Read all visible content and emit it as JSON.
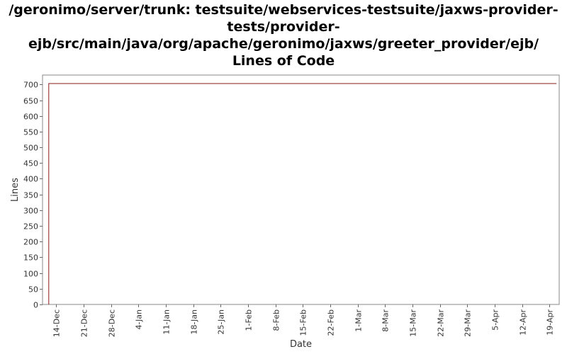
{
  "chart_data": {
    "type": "line",
    "title_lines": [
      "/geronimo/server/trunk: testsuite/webservices-testsuite/jaxws-provider-",
      "tests/provider-",
      "ejb/src/main/java/org/apache/geronimo/jaxws/greeter_provider/ejb/",
      "Lines of Code"
    ],
    "xlabel": "Date",
    "ylabel": "Lines",
    "ylim": [
      0,
      730
    ],
    "yticks": [
      0,
      50,
      100,
      150,
      200,
      250,
      300,
      350,
      400,
      450,
      500,
      550,
      600,
      650,
      700
    ],
    "xlim": [
      -3.5,
      128.5
    ],
    "xticks": [
      {
        "label": "14-Dec",
        "day": 0
      },
      {
        "label": "21-Dec",
        "day": 7
      },
      {
        "label": "28-Dec",
        "day": 14
      },
      {
        "label": "4-Jan",
        "day": 21
      },
      {
        "label": "11-Jan",
        "day": 28
      },
      {
        "label": "18-Jan",
        "day": 35
      },
      {
        "label": "25-Jan",
        "day": 42
      },
      {
        "label": "1-Feb",
        "day": 49
      },
      {
        "label": "8-Feb",
        "day": 56
      },
      {
        "label": "15-Feb",
        "day": 63
      },
      {
        "label": "22-Feb",
        "day": 70
      },
      {
        "label": "1-Mar",
        "day": 77
      },
      {
        "label": "8-Mar",
        "day": 84
      },
      {
        "label": "15-Mar",
        "day": 91
      },
      {
        "label": "22-Mar",
        "day": 98
      },
      {
        "label": "29-Mar",
        "day": 105
      },
      {
        "label": "5-Apr",
        "day": 112
      },
      {
        "label": "12-Apr",
        "day": 119
      },
      {
        "label": "19-Apr",
        "day": 126
      }
    ],
    "series": [
      {
        "color": "#8b1a1a",
        "points": [
          {
            "day": -1.9,
            "value": 0
          },
          {
            "day": -1.9,
            "value": 703
          },
          {
            "day": 127.8,
            "value": 703
          }
        ]
      }
    ],
    "grid": false,
    "legend": "none",
    "colors": {
      "plot_background": "#ffffff",
      "plot_border": "#888888",
      "tick_color": "#666666",
      "series": "#8b1a1a"
    }
  }
}
